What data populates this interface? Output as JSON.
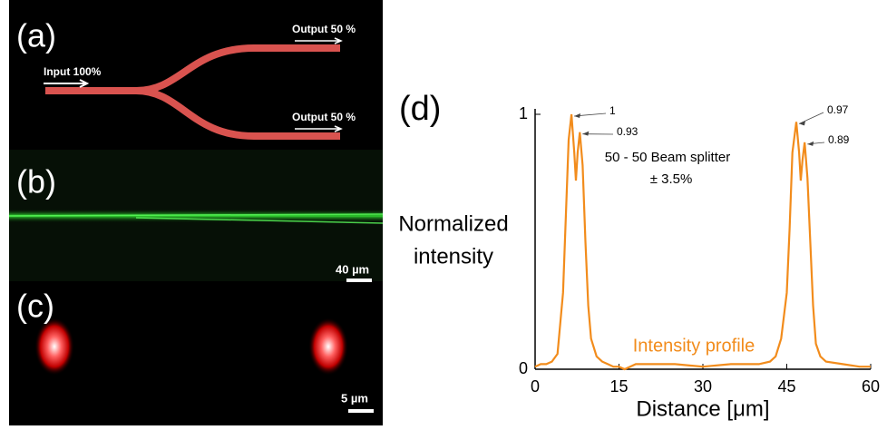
{
  "panels": {
    "a": {
      "label": "(a)",
      "input": "Input 100%",
      "output_top": "Output 50 %",
      "output_bottom": "Output 50 %"
    },
    "b": {
      "label": "(b)",
      "scale": "40 µm"
    },
    "c": {
      "label": "(c)",
      "scale": "5 µm"
    }
  },
  "chart_data": {
    "type": "line",
    "panel_label": "(d)",
    "x_label": "Distance [μm]",
    "y_label": [
      "Normalized",
      "intensity"
    ],
    "annotations": [
      "50 - 50 Beam splitter",
      "± 3.5%"
    ],
    "x": [
      0,
      1,
      2,
      3,
      4,
      5,
      5.5,
      6,
      6.5,
      7,
      7.3,
      7.6,
      8,
      8.5,
      9,
      9.5,
      10,
      11,
      12,
      13,
      14,
      15,
      16,
      18,
      20,
      25,
      30,
      35,
      40,
      42,
      43,
      44,
      45,
      45.5,
      46,
      46.7,
      47.2,
      47.5,
      47.8,
      48.2,
      48.7,
      49.2,
      49.7,
      50.2,
      51,
      52,
      55,
      58,
      60
    ],
    "series": [
      {
        "name": "Intensity profile",
        "color": "#f28c1c",
        "values": [
          0.01,
          0.02,
          0.02,
          0.03,
          0.06,
          0.3,
          0.6,
          0.9,
          1,
          0.85,
          0.74,
          0.85,
          0.93,
          0.8,
          0.5,
          0.25,
          0.12,
          0.05,
          0.03,
          0.02,
          0.01,
          0.01,
          0.0,
          0.02,
          0.02,
          0.02,
          0.01,
          0.02,
          0.02,
          0.03,
          0.05,
          0.12,
          0.3,
          0.55,
          0.85,
          0.97,
          0.85,
          0.74,
          0.82,
          0.89,
          0.75,
          0.5,
          0.25,
          0.1,
          0.05,
          0.03,
          0.02,
          0.01,
          0.01
        ]
      }
    ],
    "xlim": [
      0,
      60
    ],
    "xticks": [
      0,
      15,
      30,
      45,
      60
    ],
    "ylim": [
      0,
      1
    ],
    "yticks": [
      0,
      1
    ]
  }
}
